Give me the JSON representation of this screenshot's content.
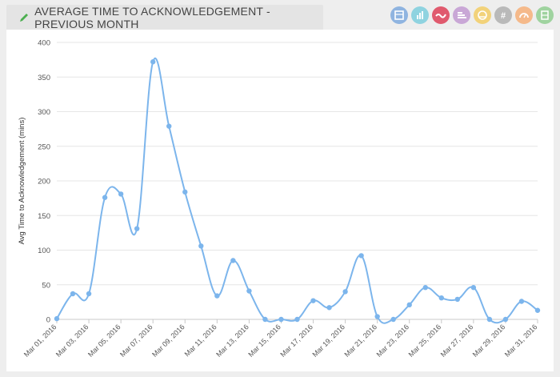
{
  "header": {
    "title": "AVERAGE TIME TO ACKNOWLEDGEMENT - PREVIOUS MONTH"
  },
  "toolbar": [
    {
      "name": "table-view-icon",
      "color": "#8fb4e0"
    },
    {
      "name": "bar-chart-icon",
      "color": "#8fd3e0"
    },
    {
      "name": "line-chart-icon",
      "color": "#e05a6e"
    },
    {
      "name": "horizontal-bar-icon",
      "color": "#c9a7d6"
    },
    {
      "name": "gauge-icon",
      "color": "#f2d27a"
    },
    {
      "name": "number-icon",
      "color": "#b9b9b9"
    },
    {
      "name": "meter-icon",
      "color": "#f5b98a"
    },
    {
      "name": "list-view-icon",
      "color": "#9fd39f"
    }
  ],
  "chart_data": {
    "type": "line",
    "ylabel": "Avg Time to Acknowledgement (mins)",
    "xlabel": "",
    "ylim": [
      0,
      400
    ],
    "yticks": [
      0,
      50,
      100,
      150,
      200,
      250,
      300,
      350,
      400
    ],
    "grid": true,
    "line_color": "#7cb5ec",
    "x": [
      "Mar 01, 2016",
      "Mar 02, 2016",
      "Mar 03, 2016",
      "Mar 04, 2016",
      "Mar 05, 2016",
      "Mar 06, 2016",
      "Mar 07, 2016",
      "Mar 08, 2016",
      "Mar 09, 2016",
      "Mar 10, 2016",
      "Mar 11, 2016",
      "Mar 12, 2016",
      "Mar 13, 2016",
      "Mar 14, 2016",
      "Mar 15, 2016",
      "Mar 16, 2016",
      "Mar 17, 2016",
      "Mar 18, 2016",
      "Mar 19, 2016",
      "Mar 20, 2016",
      "Mar 21, 2016",
      "Mar 22, 2016",
      "Mar 23, 2016",
      "Mar 24, 2016",
      "Mar 25, 2016",
      "Mar 26, 2016",
      "Mar 27, 2016",
      "Mar 28, 2016",
      "Mar 29, 2016",
      "Mar 30, 2016",
      "Mar 31, 2016"
    ],
    "xticks": [
      "Mar 01, 2016",
      "Mar 03, 2016",
      "Mar 05, 2016",
      "Mar 07, 2016",
      "Mar 09, 2016",
      "Mar 11, 2016",
      "Mar 13, 2016",
      "Mar 15, 2016",
      "Mar 17, 2016",
      "Mar 19, 2016",
      "Mar 21, 2016",
      "Mar 23, 2016",
      "Mar 25, 2016",
      "Mar 27, 2016",
      "Mar 29, 2016",
      "Mar 31, 2016"
    ],
    "series": [
      {
        "values": [
          1,
          37,
          37,
          176,
          181,
          131,
          372,
          279,
          184,
          106,
          34,
          85,
          41,
          0,
          0,
          0,
          27,
          17,
          40,
          92,
          4,
          0,
          21,
          46,
          31,
          29,
          46,
          0,
          0,
          26,
          13
        ]
      }
    ]
  }
}
